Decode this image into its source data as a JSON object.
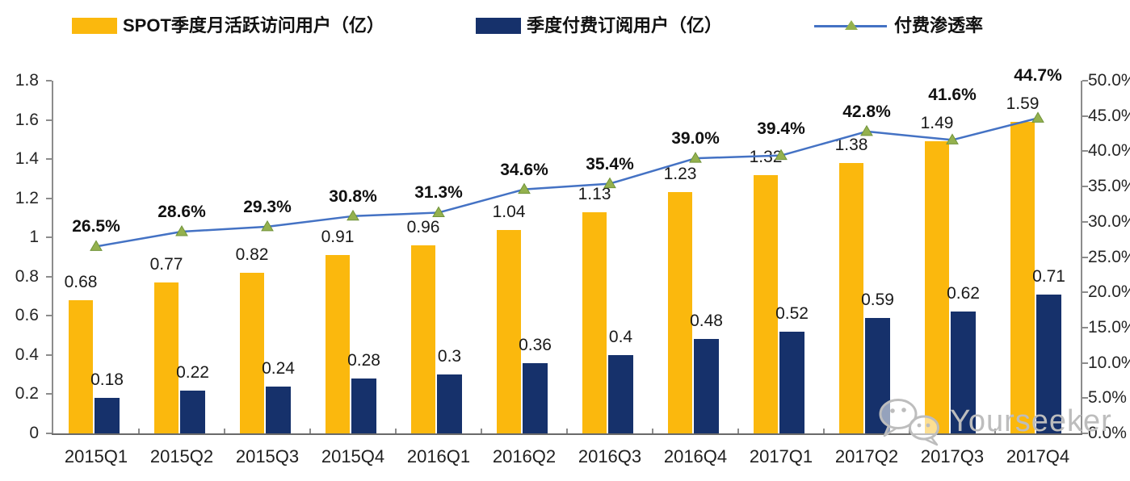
{
  "legend": {
    "items": [
      {
        "label": "SPOT季度月活跃访问用户（亿）",
        "swatch": "bar",
        "color": "#FBB80D"
      },
      {
        "label": "季度付费订阅用户（亿）",
        "swatch": "bar",
        "color": "#16316B"
      },
      {
        "label": "付费渗透率",
        "swatch": "line-marker",
        "color": "#4472C4",
        "marker_color": "#94B14E"
      }
    ]
  },
  "watermark": {
    "text": "Yourseeker",
    "icon": "wechat-icon",
    "color": "#BDBDBD"
  },
  "chart_data": {
    "type": "bar",
    "subtype": "combo-bar-line-dual-axis",
    "title": "",
    "categories": [
      "2015Q1",
      "2015Q2",
      "2015Q3",
      "2015Q4",
      "2016Q1",
      "2016Q2",
      "2016Q3",
      "2016Q4",
      "2017Q1",
      "2017Q2",
      "2017Q3",
      "2017Q4"
    ],
    "series": [
      {
        "name": "SPOT季度月活跃访问用户（亿）",
        "type": "bar",
        "axis": "left",
        "color": "#FBB80D",
        "values": [
          0.68,
          0.77,
          0.82,
          0.91,
          0.96,
          1.04,
          1.13,
          1.23,
          1.32,
          1.38,
          1.49,
          1.59
        ],
        "labels": [
          "0.68",
          "0.77",
          "0.82",
          "0.91",
          "0.96",
          "1.04",
          "1.13",
          "1.23",
          "1.32",
          "1.38",
          "1.49",
          "1.59"
        ]
      },
      {
        "name": "季度付费订阅用户（亿）",
        "type": "bar",
        "axis": "left",
        "color": "#16316B",
        "values": [
          0.18,
          0.22,
          0.24,
          0.28,
          0.3,
          0.36,
          0.4,
          0.48,
          0.52,
          0.59,
          0.62,
          0.71
        ],
        "labels": [
          "0.18",
          "0.22",
          "0.24",
          "0.28",
          "0.3",
          "0.36",
          "0.4",
          "0.48",
          "0.52",
          "0.59",
          "0.62",
          "0.71"
        ]
      },
      {
        "name": "付费渗透率",
        "type": "line",
        "axis": "right",
        "color": "#4472C4",
        "marker": "triangle",
        "marker_color": "#94B14E",
        "values_percent": [
          26.5,
          28.6,
          29.3,
          30.8,
          31.3,
          34.6,
          35.4,
          39.0,
          39.4,
          42.8,
          41.6,
          44.7
        ],
        "labels": [
          "26.5%",
          "28.6%",
          "29.3%",
          "30.8%",
          "31.3%",
          "34.6%",
          "35.4%",
          "39.0%",
          "39.4%",
          "42.8%",
          "41.6%",
          "44.7%"
        ]
      }
    ],
    "left_axis": {
      "min": 0,
      "max": 1.8,
      "tick_step": 0.2,
      "tick_labels": [
        "0",
        "0.2",
        "0.4",
        "0.6",
        "0.8",
        "1",
        "1.2",
        "1.4",
        "1.6",
        "1.8"
      ]
    },
    "right_axis": {
      "min": 0,
      "max": 50,
      "tick_step": 5,
      "tick_labels": [
        "0.0%",
        "5.0%",
        "10.0%",
        "15.0%",
        "20.0%",
        "25.0%",
        "30.0%",
        "35.0%",
        "40.0%",
        "45.0%",
        "50.0%"
      ]
    },
    "grid": false,
    "legend_position": "top",
    "axis_color": "#8C8C8C",
    "baseline_color": "#6A6A6A"
  }
}
